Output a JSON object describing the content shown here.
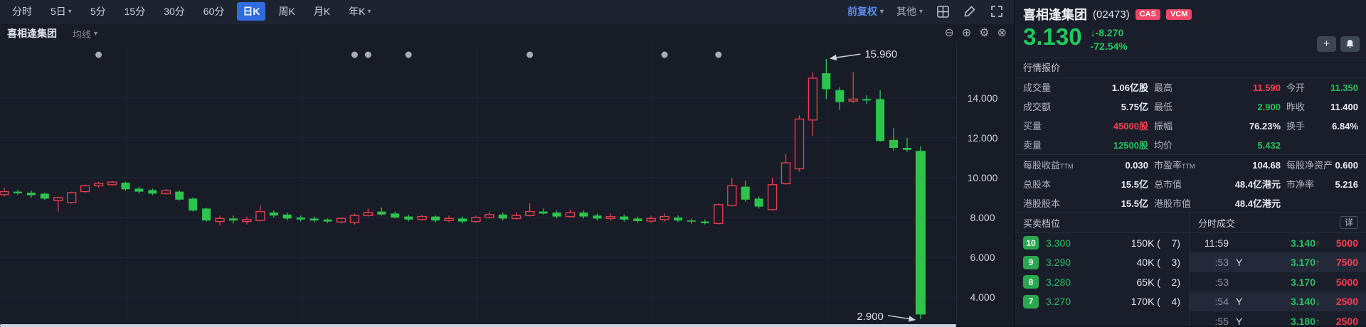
{
  "toolbar": {
    "periods": [
      {
        "key": "time",
        "label": "分时"
      },
      {
        "key": "5d",
        "label": "5日",
        "dropdown": true
      },
      {
        "key": "5m",
        "label": "5分"
      },
      {
        "key": "15m",
        "label": "15分"
      },
      {
        "key": "30m",
        "label": "30分"
      },
      {
        "key": "60m",
        "label": "60分"
      },
      {
        "key": "day-k",
        "label": "日K",
        "active": true
      },
      {
        "key": "week-k",
        "label": "周K"
      },
      {
        "key": "month-k",
        "label": "月K"
      },
      {
        "key": "year-k",
        "label": "年K",
        "dropdown": true
      }
    ],
    "adjust_label": "前复权",
    "other_label": "其他"
  },
  "subbar": {
    "stock_name": "喜相逢集团",
    "ma_label": "均线"
  },
  "chart_data": {
    "type": "candlestick",
    "ylim": [
      2.5,
      16.75
    ],
    "y_ticks": [
      14,
      12,
      10,
      8,
      6,
      4
    ],
    "y_tick_labels": [
      "14.000",
      "12.000",
      "10.000",
      "8.000",
      "6.000",
      "4.000"
    ],
    "high_annotation": "15.960",
    "low_annotation": "2.900",
    "high_candle_index": 61,
    "low_candle_index": 68,
    "event_marker_indices": [
      7,
      26,
      27,
      30,
      39,
      49,
      53
    ],
    "up_color": "#e83d4c",
    "down_color": "#2dc44e",
    "candles": [
      [
        9.15,
        9.5,
        9.05,
        9.3
      ],
      [
        9.3,
        9.4,
        9.15,
        9.22
      ],
      [
        9.25,
        9.35,
        9.0,
        9.12
      ],
      [
        9.2,
        9.25,
        8.88,
        8.95
      ],
      [
        8.85,
        9.05,
        8.3,
        9.0
      ],
      [
        8.75,
        9.3,
        8.7,
        9.25
      ],
      [
        9.3,
        9.65,
        9.25,
        9.6
      ],
      [
        9.6,
        9.8,
        9.5,
        9.72
      ],
      [
        9.65,
        9.85,
        9.6,
        9.78
      ],
      [
        9.75,
        9.8,
        9.35,
        9.42
      ],
      [
        9.45,
        9.55,
        9.2,
        9.3
      ],
      [
        9.38,
        9.45,
        9.12,
        9.2
      ],
      [
        9.2,
        9.42,
        9.15,
        9.35
      ],
      [
        9.3,
        9.35,
        8.85,
        8.9
      ],
      [
        8.95,
        9.0,
        8.3,
        8.35
      ],
      [
        8.45,
        8.5,
        7.8,
        7.85
      ],
      [
        7.8,
        8.1,
        7.6,
        7.95
      ],
      [
        7.95,
        8.1,
        7.7,
        7.85
      ],
      [
        7.8,
        8.05,
        7.65,
        7.9
      ],
      [
        7.85,
        8.6,
        7.8,
        8.3
      ],
      [
        8.25,
        8.35,
        8.0,
        8.1
      ],
      [
        8.15,
        8.25,
        7.85,
        7.95
      ],
      [
        8.0,
        8.1,
        7.8,
        7.9
      ],
      [
        7.95,
        8.05,
        7.75,
        7.85
      ],
      [
        7.9,
        7.95,
        7.72,
        7.8
      ],
      [
        7.78,
        8.0,
        7.7,
        7.95
      ],
      [
        7.75,
        8.2,
        7.65,
        8.1
      ],
      [
        8.1,
        8.45,
        8.05,
        8.25
      ],
      [
        8.3,
        8.5,
        8.1,
        8.15
      ],
      [
        8.2,
        8.3,
        7.95,
        8.0
      ],
      [
        8.05,
        8.15,
        7.8,
        7.9
      ],
      [
        7.9,
        8.15,
        7.85,
        8.05
      ],
      [
        8.05,
        8.1,
        7.75,
        7.85
      ],
      [
        7.85,
        8.1,
        7.75,
        7.95
      ],
      [
        7.95,
        8.05,
        7.7,
        7.8
      ],
      [
        7.8,
        8.1,
        7.75,
        8.0
      ],
      [
        8.0,
        8.3,
        7.95,
        8.15
      ],
      [
        8.15,
        8.25,
        7.85,
        7.95
      ],
      [
        7.95,
        8.25,
        7.9,
        8.1
      ],
      [
        8.1,
        8.7,
        8.05,
        8.3
      ],
      [
        8.3,
        8.45,
        8.15,
        8.2
      ],
      [
        8.25,
        8.35,
        7.95,
        8.05
      ],
      [
        8.05,
        8.4,
        8.0,
        8.25
      ],
      [
        8.25,
        8.35,
        7.95,
        8.05
      ],
      [
        8.1,
        8.2,
        7.85,
        7.95
      ],
      [
        7.95,
        8.2,
        7.85,
        8.05
      ],
      [
        8.05,
        8.15,
        7.8,
        7.9
      ],
      [
        7.95,
        8.05,
        7.72,
        7.82
      ],
      [
        7.82,
        8.1,
        7.72,
        7.95
      ],
      [
        7.9,
        8.2,
        7.8,
        8.05
      ],
      [
        8.0,
        8.1,
        7.78,
        7.85
      ],
      [
        7.85,
        7.95,
        7.7,
        7.8
      ],
      [
        7.8,
        7.9,
        7.65,
        7.72
      ],
      [
        7.7,
        8.7,
        7.65,
        8.65
      ],
      [
        8.6,
        10.0,
        8.55,
        9.6
      ],
      [
        9.55,
        9.85,
        8.8,
        8.9
      ],
      [
        8.95,
        9.05,
        8.45,
        8.55
      ],
      [
        8.4,
        10.0,
        8.35,
        9.65
      ],
      [
        9.7,
        11.2,
        9.65,
        10.75
      ],
      [
        10.45,
        13.15,
        10.3,
        12.95
      ],
      [
        12.9,
        15.3,
        12.1,
        15.0
      ],
      [
        15.25,
        15.96,
        13.95,
        14.45
      ],
      [
        14.4,
        14.55,
        13.4,
        13.8
      ],
      [
        13.85,
        15.3,
        13.75,
        13.95
      ],
      [
        13.95,
        14.15,
        13.7,
        13.88
      ],
      [
        13.95,
        14.4,
        11.8,
        11.85
      ],
      [
        11.9,
        12.5,
        11.35,
        11.5
      ],
      [
        11.5,
        12.0,
        11.3,
        11.4
      ],
      [
        11.35,
        11.59,
        2.9,
        3.13
      ]
    ]
  },
  "stock": {
    "name": "喜相逢集团",
    "code": "(02473)",
    "badges": [
      "CAS",
      "VCM"
    ],
    "price": "3.130",
    "change_arrow": "↓",
    "change": "-8.270",
    "change_pct": "-72.54%"
  },
  "quote": {
    "section_title": "行情报价",
    "rows_a": [
      [
        {
          "l": "成交量",
          "v": "1.06亿股",
          "c": ""
        },
        {
          "l": "最高",
          "v": "11.590",
          "c": "red"
        },
        {
          "l": "今开",
          "v": "11.350",
          "c": "green"
        }
      ],
      [
        {
          "l": "成交额",
          "v": "5.75亿",
          "c": ""
        },
        {
          "l": "最低",
          "v": "2.900",
          "c": "green"
        },
        {
          "l": "昨收",
          "v": "11.400",
          "c": ""
        }
      ],
      [
        {
          "l": "买量",
          "v": "45000股",
          "c": "red"
        },
        {
          "l": "振幅",
          "v": "76.23%",
          "c": ""
        },
        {
          "l": "换手",
          "v": "6.84%",
          "c": ""
        }
      ],
      [
        {
          "l": "卖量",
          "v": "12500股",
          "c": "green"
        },
        {
          "l": "均价",
          "v": "5.432",
          "c": "green"
        },
        null
      ]
    ],
    "rows_b": [
      [
        {
          "l": "每股收益",
          "sub": "TTM",
          "v": "0.030",
          "c": ""
        },
        {
          "l": "市盈率",
          "sub": "TTM",
          "v": "104.68",
          "c": ""
        },
        {
          "l": "每股净资产",
          "v": "0.600",
          "c": ""
        }
      ],
      [
        {
          "l": "总股本",
          "v": "15.5亿",
          "c": ""
        },
        {
          "l": "总市值",
          "v": "48.4亿港元",
          "c": ""
        },
        {
          "l": "市净率",
          "v": "5.216",
          "c": ""
        }
      ],
      [
        {
          "l": "港股股本",
          "v": "15.5亿",
          "c": ""
        },
        {
          "l": "港股市值",
          "v": "48.4亿港元",
          "c": ""
        },
        null
      ]
    ]
  },
  "order_book": {
    "title": "买卖档位",
    "rows": [
      {
        "level": "10",
        "price": "3.300",
        "size": "150K",
        "orders": "7"
      },
      {
        "level": "9",
        "price": "3.290",
        "size": "40K",
        "orders": "3"
      },
      {
        "level": "8",
        "price": "3.280",
        "size": "65K",
        "orders": "2"
      },
      {
        "level": "7",
        "price": "3.270",
        "size": "170K",
        "orders": "4"
      }
    ]
  },
  "ticks": {
    "title": "分时成交",
    "detail_label": "详",
    "rows": [
      {
        "time": "11:59",
        "flag": "",
        "price": "3.140",
        "dir": "up",
        "vol": "5000"
      },
      {
        "time": ":53",
        "flag": "Y",
        "price": "3.170",
        "dir": "up",
        "vol": "7500"
      },
      {
        "time": ":53",
        "flag": "",
        "price": "3.170",
        "dir": "",
        "vol": "5000"
      },
      {
        "time": ":54",
        "flag": "Y",
        "price": "3.140",
        "dir": "down",
        "vol": "2500"
      },
      {
        "time": ":55",
        "flag": "Y",
        "price": "3.180",
        "dir": "up",
        "vol": "2500"
      }
    ]
  }
}
